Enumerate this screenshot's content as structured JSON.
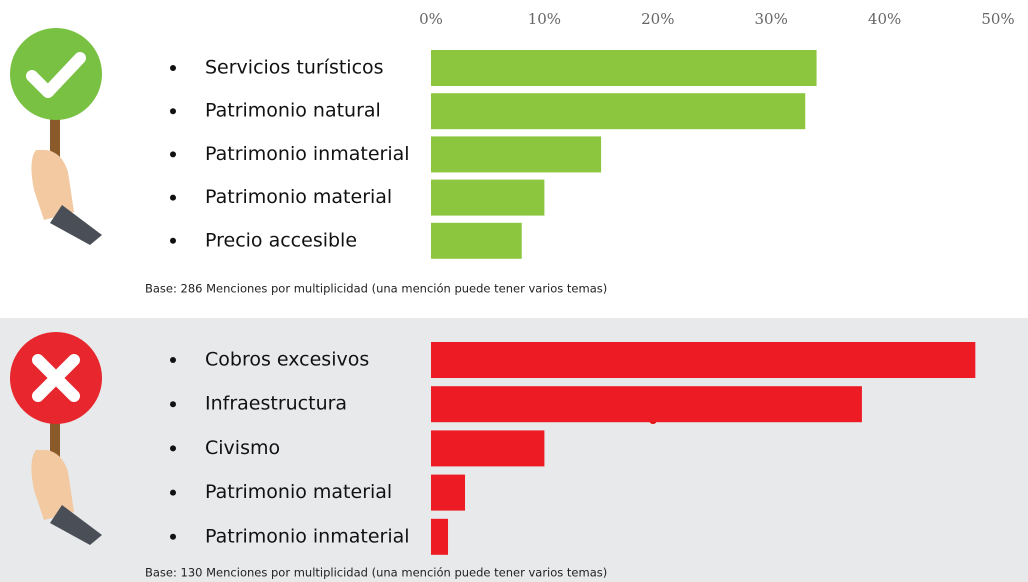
{
  "chart_data": [
    {
      "type": "bar",
      "orientation": "horizontal",
      "color": "#8cc63f",
      "categories": [
        "Servicios turísticos",
        "Patrimonio natural",
        "Patrimonio inmaterial",
        "Patrimonio material",
        "Precio accesible"
      ],
      "values": [
        34,
        33,
        15,
        10,
        8
      ],
      "xlim": [
        0,
        50
      ],
      "xticks": [
        {
          "value": 0,
          "label": "0%"
        },
        {
          "value": 10,
          "label": "10%"
        },
        {
          "value": 20,
          "label": "20%"
        },
        {
          "value": 30,
          "label": "30%"
        },
        {
          "value": 40,
          "label": "40%"
        },
        {
          "value": 50,
          "label": "50%"
        }
      ],
      "note": "Base: 286 Menciones por multiplicidad (una mención puede tener varios temas)"
    },
    {
      "type": "bar",
      "orientation": "horizontal",
      "color": "#ed1c24",
      "categories": [
        "Cobros excesivos",
        "Infraestructura",
        "Civismo",
        "Patrimonio material",
        "Patrimonio inmaterial"
      ],
      "values": [
        48,
        38,
        10,
        3,
        1.5
      ],
      "xlim": [
        0,
        50
      ],
      "note": "Base: 130 Menciones por multiplicidad (una mención puede tener varios temas)"
    }
  ]
}
